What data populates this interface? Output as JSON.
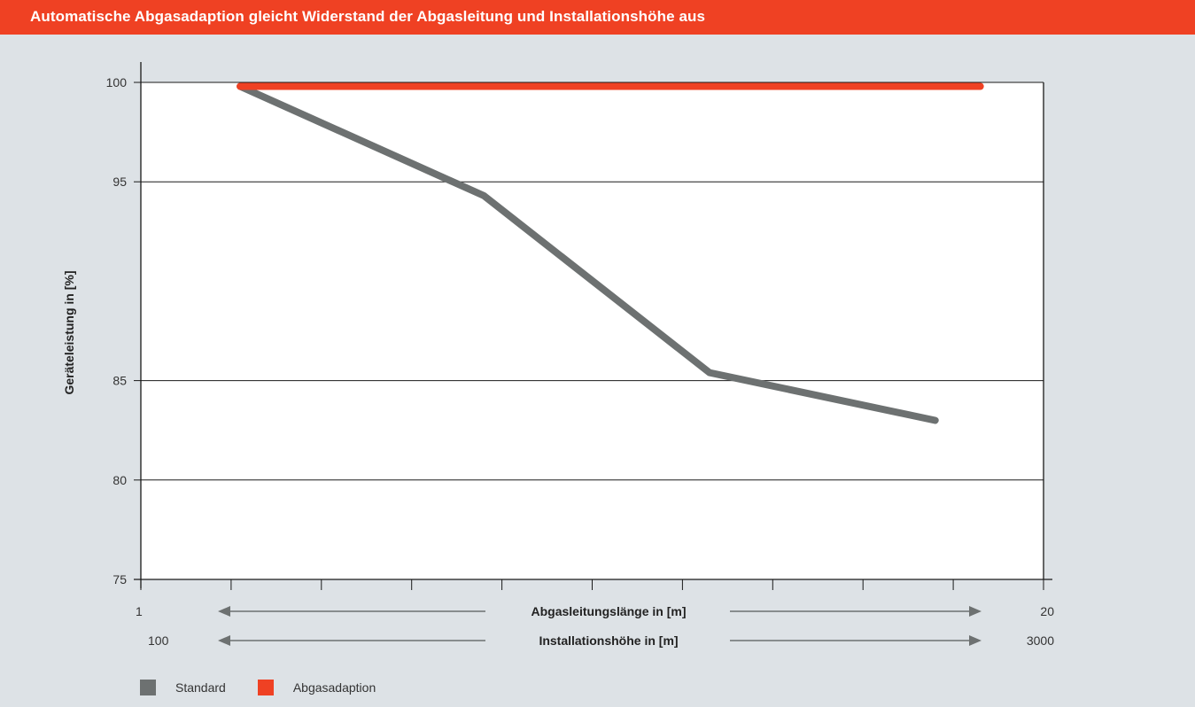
{
  "title": "Automatische Abgasadaption gleicht Widerstand der Abgasleitung und Installationshöhe aus",
  "colors": {
    "title_bar": "#ef4123",
    "standard": "#6d7171",
    "abgasadaption": "#ef4123",
    "background": "#dde2e6",
    "plot_bg": "#ffffff"
  },
  "chart_data": {
    "type": "line",
    "ylabel": "Geräteleistung in [%]",
    "ylim": [
      75,
      100
    ],
    "yticks": [
      {
        "value": 75,
        "label": "75"
      },
      {
        "value": 80,
        "label": "80"
      },
      {
        "value": 85,
        "label": "85"
      },
      {
        "value": 95,
        "label": "95"
      },
      {
        "value": 100,
        "label": "100"
      }
    ],
    "xlim": [
      0,
      10
    ],
    "x_tick_count": 11,
    "x_axes": [
      {
        "label": "Abgasleitungslänge in [m]",
        "start": "1",
        "end": "20"
      },
      {
        "label": "Installationshöhe in [m]",
        "start": "100",
        "end": "3000"
      }
    ],
    "grid": true,
    "series": [
      {
        "name": "Standard",
        "color": "#6d7171",
        "points": [
          [
            1.1,
            99.8
          ],
          [
            3.8,
            94.3
          ],
          [
            6.3,
            85.4
          ],
          [
            8.8,
            83.0
          ]
        ]
      },
      {
        "name": "Abgasadaption",
        "color": "#ef4123",
        "points": [
          [
            1.1,
            99.8
          ],
          [
            9.3,
            99.8
          ]
        ]
      }
    ],
    "legend_position": "bottom-left"
  }
}
